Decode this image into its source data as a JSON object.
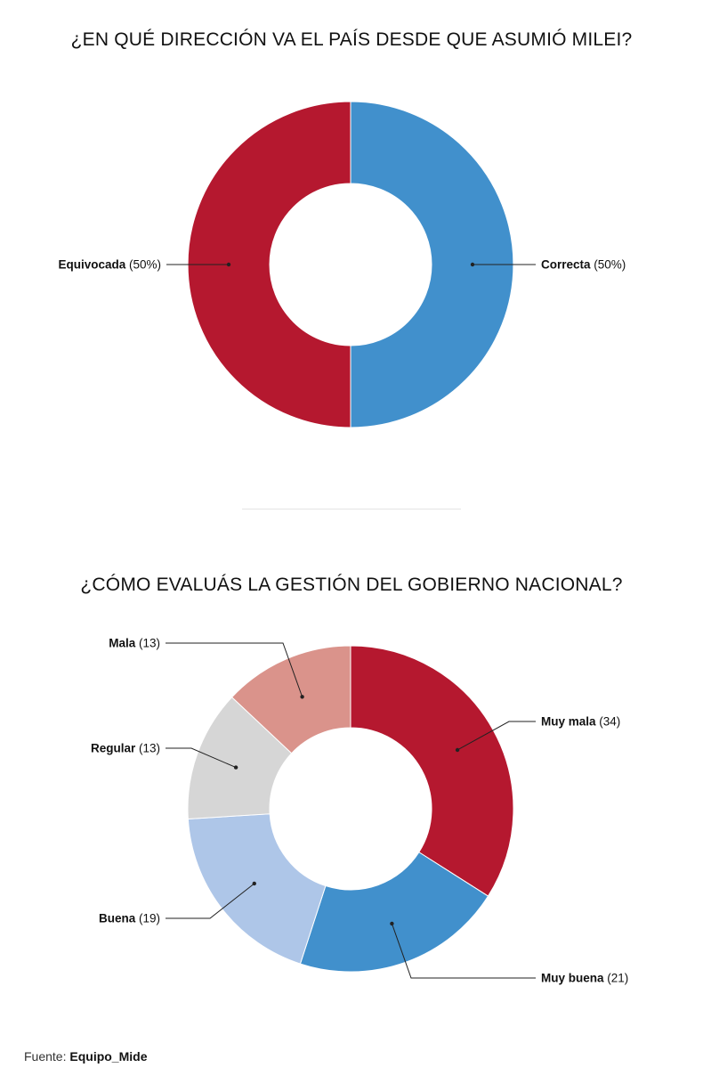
{
  "source": {
    "label": "Fuente:",
    "name": "Equipo_Mide"
  },
  "chart_data": [
    {
      "type": "pie",
      "title": "¿EN QUÉ DIRECCIÓN VA EL PAÍS DESDE QUE ASUMIÓ MILEI?",
      "donut": true,
      "slices": [
        {
          "label": "Correcta",
          "value": 50,
          "value_text": "(50%)",
          "color": "#4190cc",
          "label_side": "right"
        },
        {
          "label": "Equivocada",
          "value": 50,
          "value_text": "(50%)",
          "color": "#b5182f",
          "label_side": "left"
        }
      ]
    },
    {
      "type": "pie",
      "title": "¿CÓMO EVALUÁS LA GESTIÓN DEL GOBIERNO NACIONAL?",
      "donut": true,
      "slices": [
        {
          "label": "Muy mala",
          "value": 34,
          "value_text": "(34)",
          "color": "#b5182f",
          "label_side": "right"
        },
        {
          "label": "Muy buena",
          "value": 21,
          "value_text": "(21)",
          "color": "#4190cc",
          "label_side": "right"
        },
        {
          "label": "Buena",
          "value": 19,
          "value_text": "(19)",
          "color": "#aec6e8",
          "label_side": "left"
        },
        {
          "label": "Regular",
          "value": 13,
          "value_text": "(13)",
          "color": "#d6d6d6",
          "label_side": "left"
        },
        {
          "label": "Mala",
          "value": 13,
          "value_text": "(13)",
          "color": "#da938b",
          "label_side": "left"
        }
      ]
    }
  ]
}
